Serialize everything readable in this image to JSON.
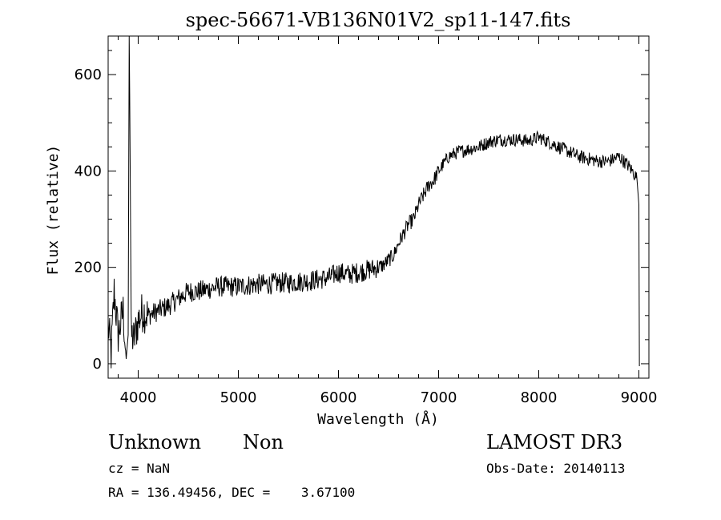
{
  "chart_data": {
    "type": "line",
    "title": "spec-56671-VB136N01V2_sp11-147.fits",
    "xlabel": "Wavelength (Å)",
    "ylabel": "Flux (relative)",
    "xlim": [
      3700,
      9100
    ],
    "ylim": [
      -30,
      680
    ],
    "x_ticks": [
      4000,
      5000,
      6000,
      7000,
      8000,
      9000
    ],
    "x_tick_labels": [
      "4000",
      "5000",
      "6000",
      "7000",
      "8000",
      "9000"
    ],
    "y_ticks": [
      0,
      200,
      400,
      600
    ],
    "y_tick_labels": [
      "0",
      "200",
      "400",
      "600"
    ],
    "grid": false,
    "line_color": "#000000",
    "series": [
      {
        "x": [
          3700,
          3730,
          3760,
          3800,
          3850,
          3880,
          3900,
          3910,
          3915,
          3930,
          3960,
          4000,
          4050,
          4100,
          4200,
          4300,
          4400,
          4500,
          4600,
          4700,
          4800,
          4900,
          5000,
          5100,
          5200,
          5300,
          5400,
          5500,
          5600,
          5700,
          5800,
          5900,
          6000,
          6100,
          6200,
          6300,
          6400,
          6450,
          6500,
          6550,
          6600,
          6650,
          6700,
          6750,
          6800,
          6850,
          6900,
          6950,
          7000,
          7050,
          7100,
          7200,
          7300,
          7400,
          7500,
          7600,
          7700,
          7800,
          7900,
          8000,
          8050,
          8100,
          8200,
          8300,
          8400,
          8500,
          8600,
          8700,
          8800,
          8850,
          8900,
          8950,
          8980,
          9000,
          9005
        ],
        "y": [
          80,
          20,
          150,
          60,
          110,
          10,
          60,
          680,
          560,
          60,
          50,
          90,
          110,
          100,
          110,
          120,
          135,
          150,
          150,
          155,
          160,
          160,
          160,
          163,
          165,
          165,
          168,
          168,
          170,
          172,
          175,
          178,
          190,
          185,
          190,
          195,
          200,
          205,
          215,
          225,
          250,
          270,
          290,
          300,
          330,
          350,
          370,
          380,
          400,
          415,
          430,
          440,
          445,
          450,
          460,
          465,
          465,
          465,
          462,
          470,
          465,
          460,
          450,
          440,
          430,
          425,
          420,
          420,
          430,
          420,
          410,
          395,
          385,
          330,
          -5
        ]
      }
    ]
  },
  "info": {
    "class": "Unknown",
    "subclass": "Non",
    "survey": "LAMOST DR3",
    "cz": "cz = NaN",
    "obs_date": "Obs-Date: 20140113",
    "coords": "RA = 136.49456, DEC =    3.67100"
  }
}
